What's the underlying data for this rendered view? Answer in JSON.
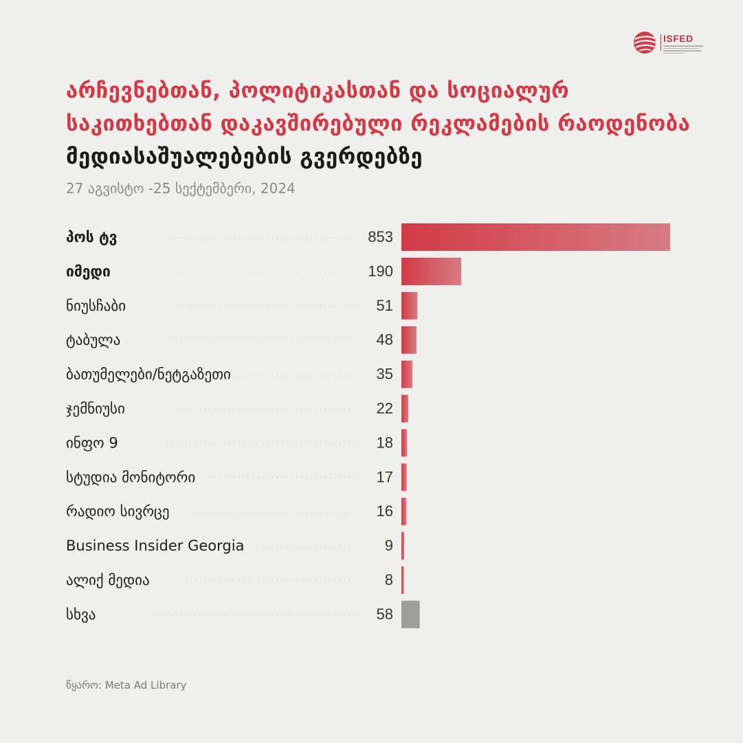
{
  "logo": {
    "text": "ISFED",
    "icon": "isfed-sphere-logo"
  },
  "title": {
    "red": "არჩევნებთან, პოლიტიკასთან და სოციალურ საკითხებთან დაკავშირებული რეკლამების რაოდენობა",
    "dark": "მედიასაშუალებების გვერდებზე"
  },
  "subtitle": "27 აგვისტო -25 სექტემბერი, 2024",
  "source": "წყარო: Meta Ad Library",
  "colors": {
    "accent": "#d23a45",
    "other": "#9e9e9e",
    "background": "#efefee"
  },
  "chart_data": {
    "type": "bar",
    "orientation": "horizontal",
    "categories": [
      "პოს ტვ",
      "იმედი",
      "ნიუსჩაბი",
      "ტაბულა",
      "ბათუმელები/ნეტგაზეთი",
      "ჯემნიუსი",
      "ინფო 9",
      "სტუდია მონიტორი",
      "რადიო სივრცე",
      "Business Insider Georgia",
      "ალიქ მედია",
      "სხვა"
    ],
    "values": [
      853,
      190,
      51,
      48,
      35,
      22,
      18,
      17,
      16,
      9,
      8,
      58
    ],
    "bold_categories": [
      "პოს ტვ",
      "იმედი"
    ],
    "grey_categories": [
      "სხვა"
    ],
    "xlim": [
      0,
      853
    ],
    "grid": false,
    "legend": "none"
  }
}
